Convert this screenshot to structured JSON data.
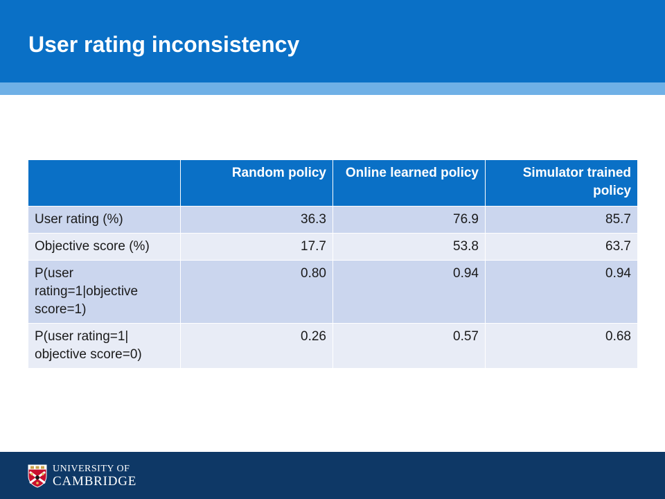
{
  "slide": {
    "title": "User rating inconsistency"
  },
  "table": {
    "headers": [
      "",
      "Random policy",
      "Online learned policy",
      "Simulator trained policy"
    ],
    "rows": [
      {
        "label": "User rating (%)",
        "values": [
          "36.3",
          "76.9",
          "85.7"
        ]
      },
      {
        "label": "Objective score (%)",
        "values": [
          "17.7",
          "53.8",
          "63.7"
        ]
      },
      {
        "label": "P(user rating=1|objective score=1)",
        "values": [
          "0.80",
          "0.94",
          "0.94"
        ]
      },
      {
        "label": "P(user rating=1| objective score=0)",
        "values": [
          "0.26",
          "0.57",
          "0.68"
        ]
      }
    ]
  },
  "footer": {
    "logo_line1": "UNIVERSITY OF",
    "logo_line2": "CAMBRIDGE"
  },
  "colors": {
    "header": "#0a70c6",
    "header_stripe": "#6fb0e6",
    "row_dark": "#cbd6ee",
    "row_light": "#e8ecf6",
    "footer": "#0e3866"
  }
}
